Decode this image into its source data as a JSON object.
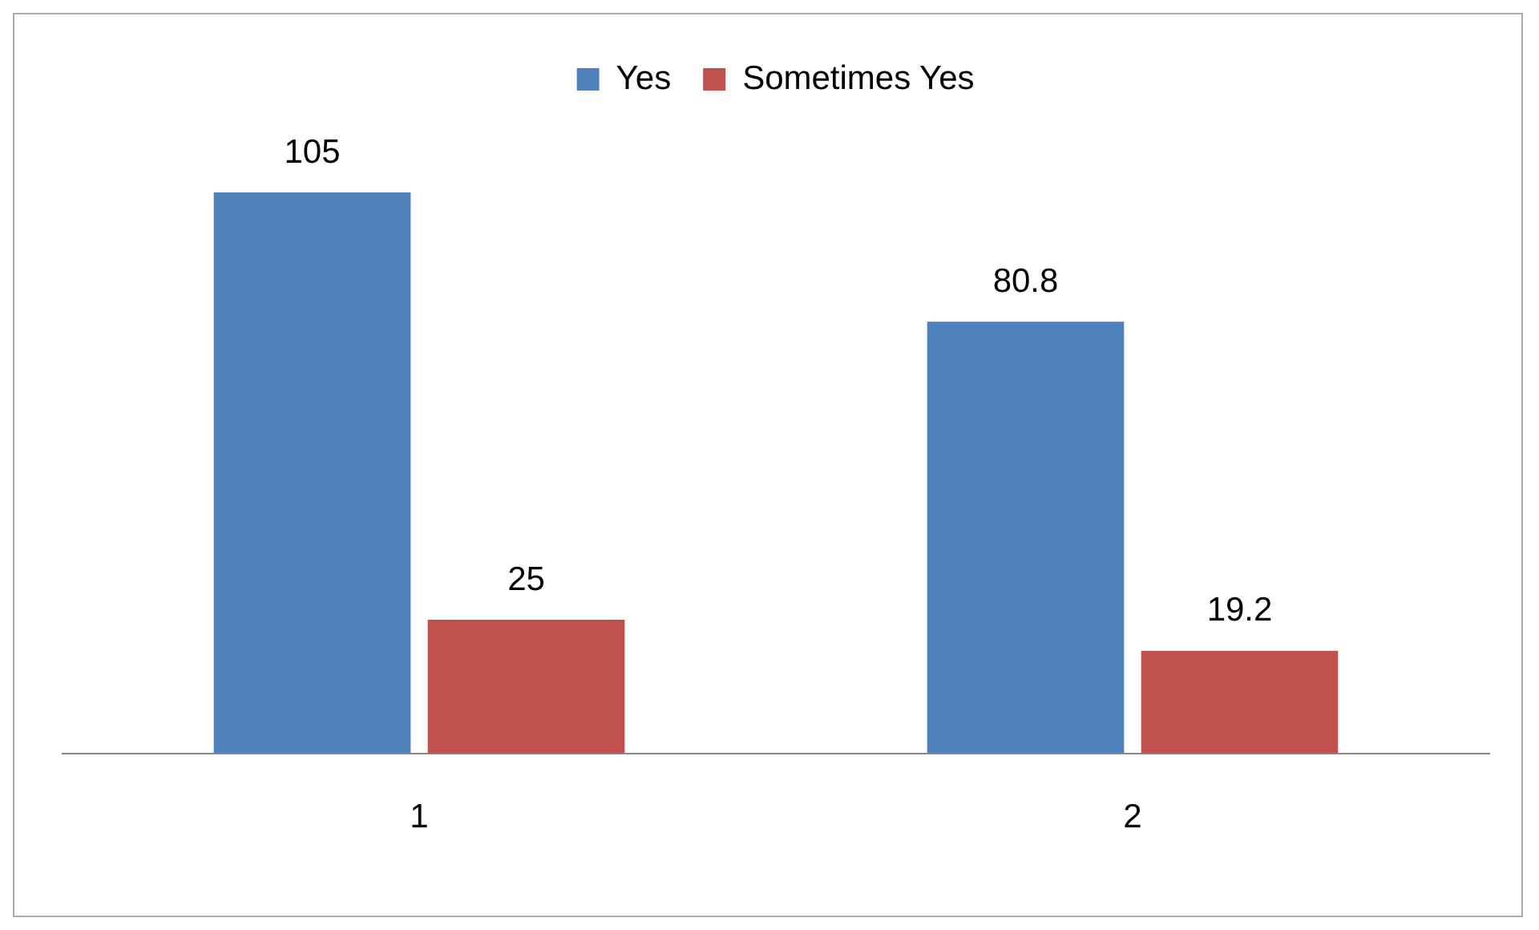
{
  "chart_data": {
    "type": "bar",
    "categories": [
      "1",
      "2"
    ],
    "series": [
      {
        "name": "Yes",
        "color": "#4f81bd",
        "values": [
          105,
          80.8
        ]
      },
      {
        "name": "Sometimes Yes",
        "color": "#c0504d",
        "values": [
          25,
          19.2
        ]
      }
    ],
    "data_labels": true,
    "legend": "top",
    "grid": false
  }
}
